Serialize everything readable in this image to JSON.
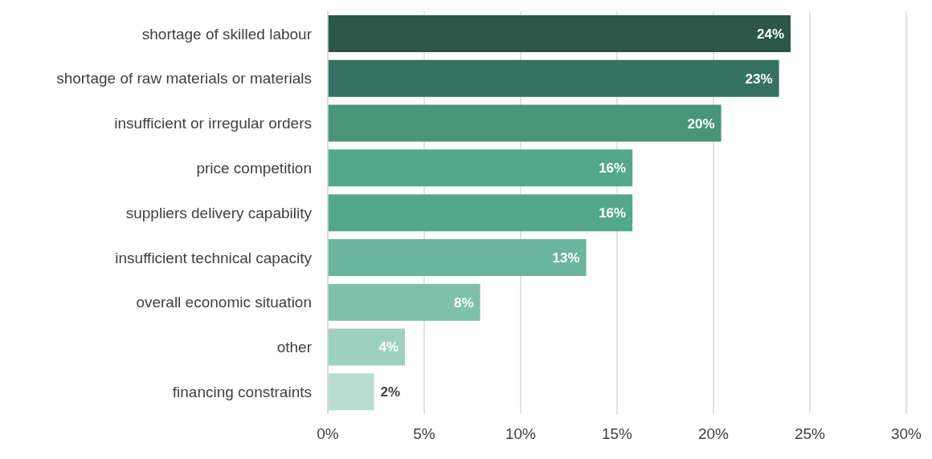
{
  "chart_data": {
    "type": "bar",
    "orientation": "horizontal",
    "categories": [
      "shortage of skilled labour",
      "shortage of raw materials or materials",
      "insufficient or irregular orders ",
      "price competition",
      "suppliers delivery capability",
      "insufficient technical capacity",
      "overall economic situation",
      "other",
      "financing constraints"
    ],
    "values": [
      24.0,
      23.4,
      20.4,
      15.8,
      15.8,
      13.4,
      7.9,
      4.0,
      2.4
    ],
    "value_labels": [
      "24%",
      "23%",
      "20%",
      "16%",
      "16%",
      "13%",
      "8%",
      "4%",
      "2%"
    ],
    "colors": [
      "#2b5748",
      "#357261",
      "#4a9479",
      "#53a88b",
      "#53a88b",
      "#6bb59e",
      "#7fc0aa",
      "#9dd0bf",
      "#b7ddd0"
    ],
    "xlim": [
      0,
      30
    ],
    "xticks": [
      {
        "value": 0,
        "label": "0%"
      },
      {
        "value": 5,
        "label": "5%"
      },
      {
        "value": 10,
        "label": "10%"
      },
      {
        "value": 15,
        "label": "15%"
      },
      {
        "value": 20,
        "label": "20%"
      },
      {
        "value": 25,
        "label": "25%"
      },
      {
        "value": 30,
        "label": "30%"
      }
    ],
    "grid": "x"
  }
}
